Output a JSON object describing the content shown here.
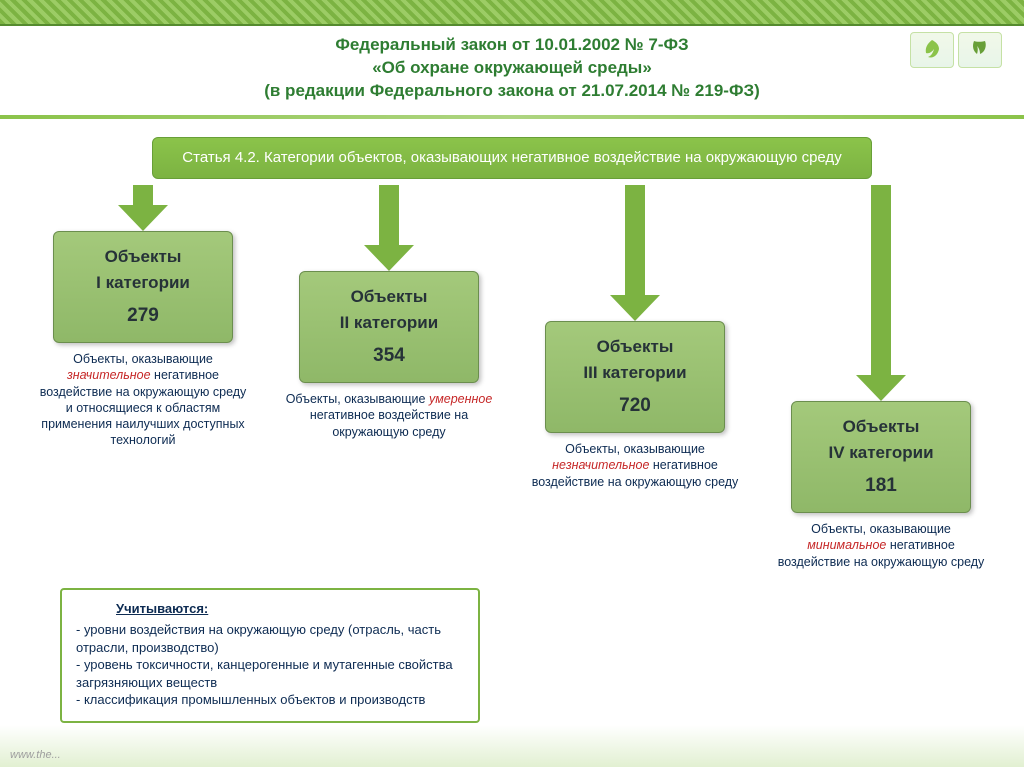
{
  "colors": {
    "accent_green": "#7cb342",
    "title_green": "#2e7d32",
    "box_green_top": "#a4c97b",
    "box_green_bottom": "#8fb868",
    "text_navy": "#0d2b52",
    "emphasis_red": "#c62828",
    "arrow_green": "#7cb342"
  },
  "title": {
    "line1": "Федеральный закон от 10.01.2002 № 7-ФЗ",
    "line2": "«Об охране окружающей среды»",
    "line3": "(в редакции Федерального закона от 21.07.2014 № 219-ФЗ)"
  },
  "article": "Статья 4.2. Категории объектов, оказывающих негативное воздействие на окружающую среду",
  "columns": [
    {
      "arrow_height": 46,
      "box_l1": "Объекты",
      "box_l2": "I категории",
      "box_num": "279",
      "desc_pre": "Объекты, оказывающие ",
      "desc_em": "значительное",
      "desc_post": " негативное воздействие на окружающую среду и относящиеся к областям применения наилучших доступных технологий"
    },
    {
      "arrow_height": 86,
      "box_l1": "Объекты",
      "box_l2": "II категории",
      "box_num": "354",
      "desc_pre": "Объекты, оказывающие ",
      "desc_em": "умеренное",
      "desc_post": " негативное воздействие на окружающую среду"
    },
    {
      "arrow_height": 136,
      "box_l1": "Объекты",
      "box_l2": "III категории",
      "box_num": "720",
      "desc_pre": "Объекты, оказывающие ",
      "desc_em": "незначительное",
      "desc_post": " негативное воздействие на окружающую среду"
    },
    {
      "arrow_height": 216,
      "box_l1": "Объекты",
      "box_l2": "IV категории",
      "box_num": "181",
      "desc_pre": "Объекты, оказывающие ",
      "desc_em": "минимальное",
      "desc_post": " негативное воздействие на окружающую среду"
    }
  ],
  "considered": {
    "head": "Учитываются:",
    "b1": "- уровни воздействия на окружающую среду (отрасль, часть отрасли, производство)",
    "b2": "- уровень токсичности, канцерогенные и мутагенные свойства загрязняющих веществ",
    "b3": "- классификация промышленных объектов и производств"
  },
  "footer_site": "www.the..."
}
